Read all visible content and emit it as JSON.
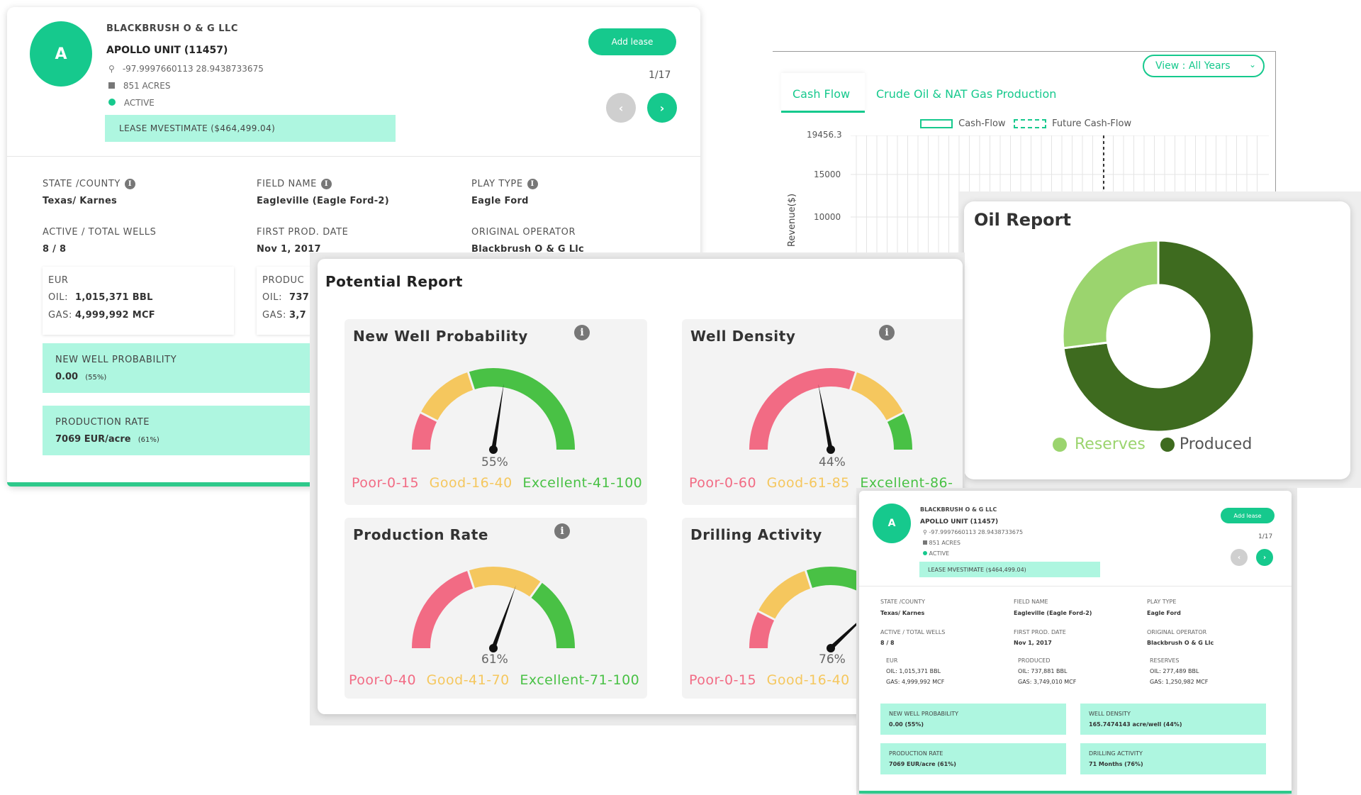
{
  "lease": {
    "avatar_letter": "A",
    "company": "BLACKBRUSH O & G LLC",
    "unit": "APOLLO UNIT (11457)",
    "coordinates": "-97.9997660113 28.9438733675",
    "acres": "851 ACRES",
    "status": "ACTIVE",
    "mvestimate": "LEASE MVESTIMATE ($464,499.04)",
    "add_lease": "Add lease",
    "pager": "1/17",
    "fields": {
      "state_county_label": "STATE /COUNTY",
      "state_county_value": "Texas/ Karnes",
      "field_name_label": "FIELD NAME",
      "field_name_value": "Eagleville (Eagle Ford-2)",
      "play_type_label": "PLAY TYPE",
      "play_type_value": "Eagle Ford",
      "wells_label": "ACTIVE / TOTAL WELLS",
      "wells_value": "8 / 8",
      "first_prod_label": "FIRST PROD. DATE",
      "first_prod_value": "Nov 1, 2017",
      "operator_label": "ORIGINAL OPERATOR",
      "operator_value": "Blackbrush O & G Llc"
    },
    "eur": {
      "label": "EUR",
      "oil_label": "OIL:",
      "oil_value": "1,015,371 BBL",
      "gas_label": "GAS:",
      "gas_value": "4,999,992 MCF"
    },
    "produced_partial": {
      "label": "PRODUC",
      "oil_label": "OIL:",
      "oil_value": "737",
      "gas_label": "GAS:",
      "gas_value": "3,7"
    },
    "new_well": {
      "label": "NEW WELL PROBABILITY",
      "value": "0.00",
      "pct": "(55%)"
    },
    "production_rate": {
      "label": "PRODUCTION RATE",
      "value": "7069 EUR/acre",
      "pct": "(61%)"
    }
  },
  "cash_flow": {
    "view_select": "View : All Years",
    "tabs": [
      "Cash Flow",
      "Crude Oil & NAT Gas Production"
    ],
    "legend": [
      "Cash-Flow",
      "Future Cash-Flow"
    ],
    "y_ticks": [
      "19456.3",
      "15000",
      "10000"
    ],
    "y_label": "Revenue($)"
  },
  "oil_report": {
    "title": "Oil Report",
    "legend": [
      "Reserves",
      "Produced"
    ],
    "chart_data": {
      "type": "pie",
      "categories": [
        "Reserves",
        "Produced"
      ],
      "values": [
        27,
        73
      ],
      "colors": [
        "#9bd46e",
        "#3e6b1f"
      ]
    }
  },
  "potential": {
    "title": "Potential Report",
    "gauges": [
      {
        "title": "New Well Probability",
        "pct": "55%",
        "value": 55,
        "legend": [
          "Poor-0-15",
          "Good-16-40",
          "Excellent-41-100"
        ]
      },
      {
        "title": "Well Density",
        "pct": "44%",
        "value": 44,
        "legend": [
          "Poor-0-60",
          "Good-61-85",
          "Excellent-86-"
        ]
      },
      {
        "title": "Production Rate",
        "pct": "61%",
        "value": 61,
        "legend": [
          "Poor-0-40",
          "Good-41-70",
          "Excellent-71-100"
        ]
      },
      {
        "title": "Drilling Activity",
        "pct": "76%",
        "value": 76,
        "legend": [
          "Poor-0-15",
          "Good-16-40"
        ]
      }
    ]
  },
  "lease_small": {
    "avatar_letter": "A",
    "company": "BLACKBRUSH O & G LLC",
    "unit": "APOLLO UNIT (11457)",
    "coordinates": "-97.9997660113 28.9438733675",
    "acres": "851 ACRES",
    "status": "ACTIVE",
    "mvestimate": "LEASE MVESTIMATE ($464,499.04)",
    "add_lease": "Add lease",
    "pager": "1/17",
    "state_county_label": "STATE /COUNTY",
    "state_county_value": "Texas/ Karnes",
    "field_name_label": "FIELD NAME",
    "field_name_value": "Eagleville (Eagle Ford-2)",
    "play_type_label": "PLAY TYPE",
    "play_type_value": "Eagle Ford",
    "wells_label": "ACTIVE / TOTAL WELLS",
    "wells_value": "8 / 8",
    "first_prod_label": "FIRST PROD. DATE",
    "first_prod_value": "Nov 1, 2017",
    "operator_label": "ORIGINAL OPERATOR",
    "operator_value": "Blackbrush O & G Llc",
    "eur_label": "EUR",
    "eur_oil": "OIL: 1,015,371 BBL",
    "eur_gas": "GAS: 4,999,992 MCF",
    "produced_label": "PRODUCED",
    "produced_oil": "OIL: 737,881 BBL",
    "produced_gas": "GAS: 3,749,010 MCF",
    "reserves_label": "RESERVES",
    "reserves_oil": "OIL: 277,489 BBL",
    "reserves_gas": "GAS: 1,250,982 MCF",
    "new_well_label": "NEW WELL PROBABILITY",
    "new_well_value": "0.00 (55%)",
    "well_density_label": "WELL DENSITY",
    "well_density_value": "165.7474143 acre/well (44%)",
    "prod_rate_label": "PRODUCTION RATE",
    "prod_rate_value": "7069 EUR/acre (61%)",
    "drilling_label": "DRILLING ACTIVITY",
    "drilling_value": "71 Months (76%)"
  }
}
